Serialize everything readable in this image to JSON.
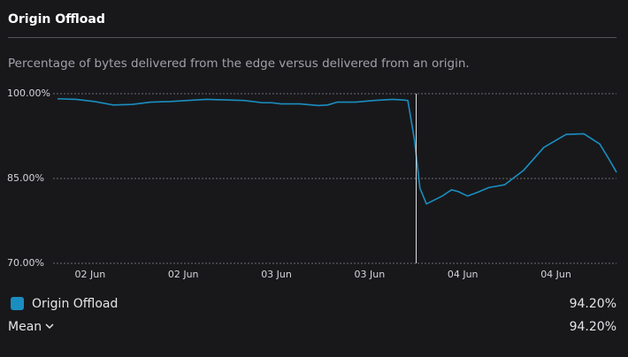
{
  "chart_data": {
    "type": "line",
    "title": "Origin Offload",
    "subtitle": "Percentage of bytes delivered from the edge versus delivered from an origin.",
    "x": [
      0,
      2,
      4,
      6,
      8,
      10,
      12,
      14,
      16,
      18,
      20,
      22,
      23,
      24,
      26,
      28,
      29,
      30,
      32,
      34,
      35,
      36,
      37,
      37.6,
      38.3,
      38.9,
      39.6,
      41.3,
      42.3,
      43,
      44,
      45,
      46.3,
      48,
      50,
      52.2,
      54.6,
      56.5,
      58.2,
      59.2,
      60
    ],
    "series": [
      {
        "name": "Origin Offload",
        "color": "#1a8ec0",
        "values": [
          99.1,
          99.0,
          98.6,
          98.0,
          98.1,
          98.5,
          98.6,
          98.8,
          99.0,
          98.9,
          98.8,
          98.4,
          98.4,
          98.2,
          98.2,
          97.9,
          98.0,
          98.5,
          98.5,
          98.8,
          98.9,
          99.0,
          98.9,
          98.8,
          92,
          83.3,
          80.5,
          81.9,
          83.0,
          82.7,
          81.9,
          82.5,
          83.4,
          83.9,
          86.4,
          90.5,
          92.8,
          92.9,
          91.1,
          88.4,
          86.1
        ],
        "legend_value": 94.2,
        "legend_value_label": "94.20%"
      }
    ],
    "stat": {
      "label": "Mean",
      "value": 94.2,
      "value_label": "94.20%"
    },
    "crosshair_x": 38.5,
    "xlim": [
      0,
      60
    ],
    "xticks": [
      {
        "value": 3.5,
        "label": "02 Jun"
      },
      {
        "value": 13.5,
        "label": "02 Jun"
      },
      {
        "value": 23.5,
        "label": "03 Jun"
      },
      {
        "value": 33.5,
        "label": "03 Jun"
      },
      {
        "value": 43.5,
        "label": "04 Jun"
      },
      {
        "value": 53.5,
        "label": "04 Jun"
      }
    ],
    "ylim": [
      70,
      100
    ],
    "yticks": [
      {
        "value": 70,
        "label": "70.00%"
      },
      {
        "value": 85,
        "label": "85.00%"
      },
      {
        "value": 100,
        "label": "100.00%"
      }
    ],
    "grid": true
  }
}
